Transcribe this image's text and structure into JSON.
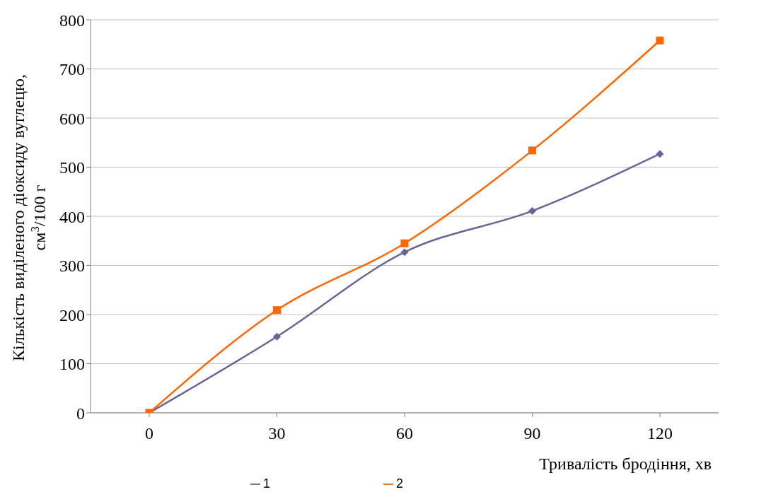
{
  "chart_data": {
    "type": "line",
    "xlabel": "Тривалість бродіння, хв",
    "ylabel": "Кількість виділеного діоксиду вуглецю,\nсм$^{3}$/100 г",
    "categories": [
      "0",
      "30",
      "60",
      "90",
      "120"
    ],
    "series": [
      {
        "name": "1",
        "color": "#666699",
        "marker": "diamond",
        "values": [
          0,
          155,
          327,
          411,
          527
        ]
      },
      {
        "name": "2",
        "color": "#ff6600",
        "marker": "square",
        "values": [
          0,
          209,
          345,
          534,
          758
        ]
      }
    ],
    "ylim": [
      0,
      800
    ],
    "yticks": [
      0,
      100,
      200,
      300,
      400,
      500,
      600,
      700,
      800
    ],
    "grid": "y",
    "legend": "bottom",
    "line_style": "solid"
  }
}
